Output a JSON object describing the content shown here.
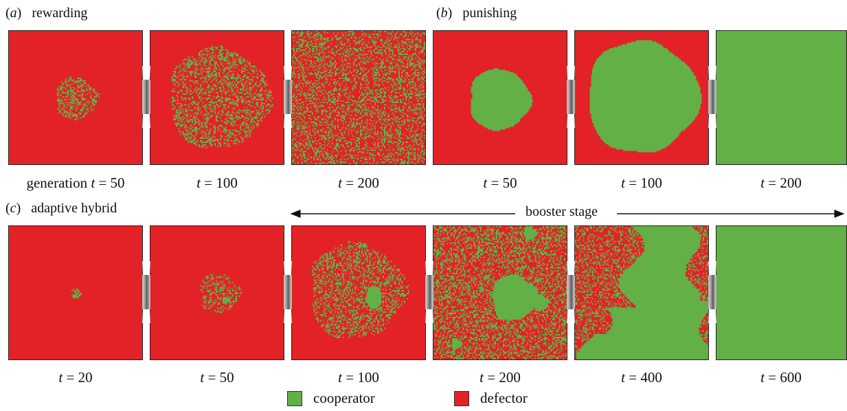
{
  "colors": {
    "cooperator": "#62b046",
    "defector": "#e32228",
    "frame": "#222222"
  },
  "panels": {
    "a": {
      "letter": "a",
      "title": "rewarding"
    },
    "b": {
      "letter": "b",
      "title": "punishing"
    },
    "c": {
      "letter": "c",
      "title": "adaptive hybrid"
    }
  },
  "booster": {
    "label": "booster stage"
  },
  "row1_captions": [
    {
      "prefix": "generation ",
      "t": "t",
      "eq": " = 50"
    },
    {
      "prefix": "",
      "t": "t",
      "eq": " = 100"
    },
    {
      "prefix": "",
      "t": "t",
      "eq": " = 200"
    },
    {
      "prefix": "",
      "t": "t",
      "eq": " = 50"
    },
    {
      "prefix": "",
      "t": "t",
      "eq": " = 100"
    },
    {
      "prefix": "",
      "t": "t",
      "eq": " = 200"
    }
  ],
  "row2_captions": [
    {
      "prefix": "",
      "t": "t",
      "eq": " = 20"
    },
    {
      "prefix": "",
      "t": "t",
      "eq": " = 50"
    },
    {
      "prefix": "",
      "t": "t",
      "eq": " = 100"
    },
    {
      "prefix": "",
      "t": "t",
      "eq": " = 200"
    },
    {
      "prefix": "",
      "t": "t",
      "eq": " = 400"
    },
    {
      "prefix": "",
      "t": "t",
      "eq": " = 600"
    }
  ],
  "legend": {
    "cooperator": "cooperator",
    "defector": "defector"
  }
}
